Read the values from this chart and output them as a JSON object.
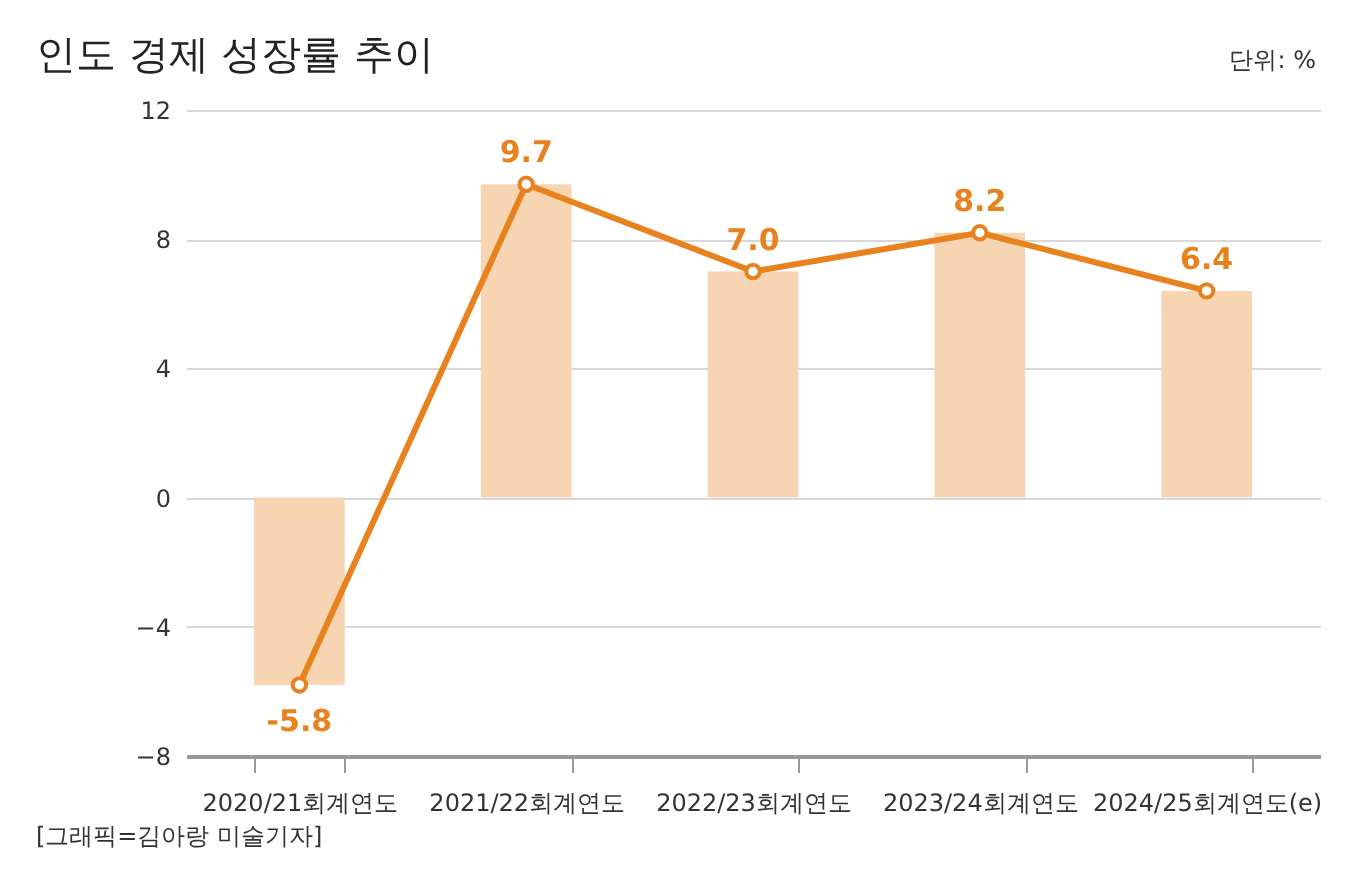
{
  "chart_data": {
    "type": "bar",
    "title": "인도 경제 성장률 추이",
    "categories": [
      "2020/21회계연도",
      "2021/22회계연도",
      "2022/23회계연도",
      "2023/24회계연도",
      "2024/25회계연도(e)"
    ],
    "series": [
      {
        "color": "#f7d5b3",
        "values": [
          -5.8,
          9.7,
          7.0,
          8.2,
          6.4
        ]
      },
      {
        "type": "line",
        "color": "#e8821e",
        "values": [
          -5.8,
          9.7,
          7.0,
          8.2,
          6.4
        ],
        "value_labels": [
          "-5.8",
          "9.7",
          "7.0",
          "8.2",
          "6.4"
        ]
      }
    ],
    "ylim": [
      -8,
      12
    ],
    "yticks": [
      -8,
      -4,
      0,
      4,
      8,
      12
    ],
    "grid": "y",
    "marker": "circle",
    "annotations": [
      "단위: %",
      "[그래픽=김아랑 미술기자]"
    ]
  }
}
